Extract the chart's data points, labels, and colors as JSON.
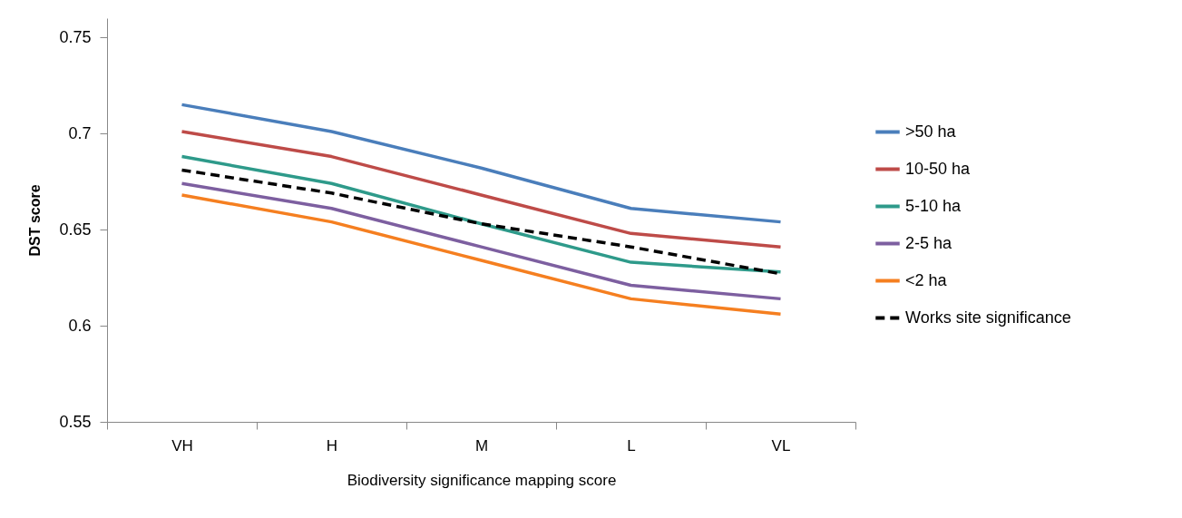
{
  "chart_data": {
    "type": "line",
    "xlabel": "Biodiversity significance mapping score",
    "ylabel": "DST score",
    "categories": [
      "VH",
      "H",
      "M",
      "L",
      "VL"
    ],
    "ylim": [
      0.55,
      0.76
    ],
    "yticks": [
      0.55,
      {
        "value": 0.6,
        "label": "0.6"
      },
      0.65,
      {
        "value": 0.7,
        "label": "0.7"
      },
      0.75
    ],
    "grid": false,
    "legend": "right",
    "marker": "none",
    "series": [
      {
        "name": ">50 ha",
        "color": "#4a7ebb",
        "line_style": "solid",
        "values": [
          0.715,
          0.701,
          0.682,
          0.661,
          0.654
        ]
      },
      {
        "name": "10-50 ha",
        "color": "#be4b48",
        "line_style": "solid",
        "values": [
          0.701,
          0.688,
          0.668,
          0.648,
          0.641
        ]
      },
      {
        "name": "5-10 ha",
        "color": "#2e9a8a",
        "line_style": "solid",
        "values": [
          0.688,
          0.674,
          0.653,
          0.633,
          0.628
        ]
      },
      {
        "name": "2-5 ha",
        "color": "#7d5fa0",
        "line_style": "solid",
        "values": [
          0.674,
          0.661,
          0.641,
          0.621,
          0.614
        ]
      },
      {
        "name": "<2 ha",
        "color": "#f57f20",
        "line_style": "solid",
        "values": [
          0.668,
          0.654,
          0.634,
          0.614,
          0.606
        ]
      },
      {
        "name": "Works site significance",
        "color": "#000000",
        "line_style": "dashed",
        "values": [
          0.681,
          0.669,
          0.653,
          0.641,
          0.627
        ]
      }
    ]
  }
}
